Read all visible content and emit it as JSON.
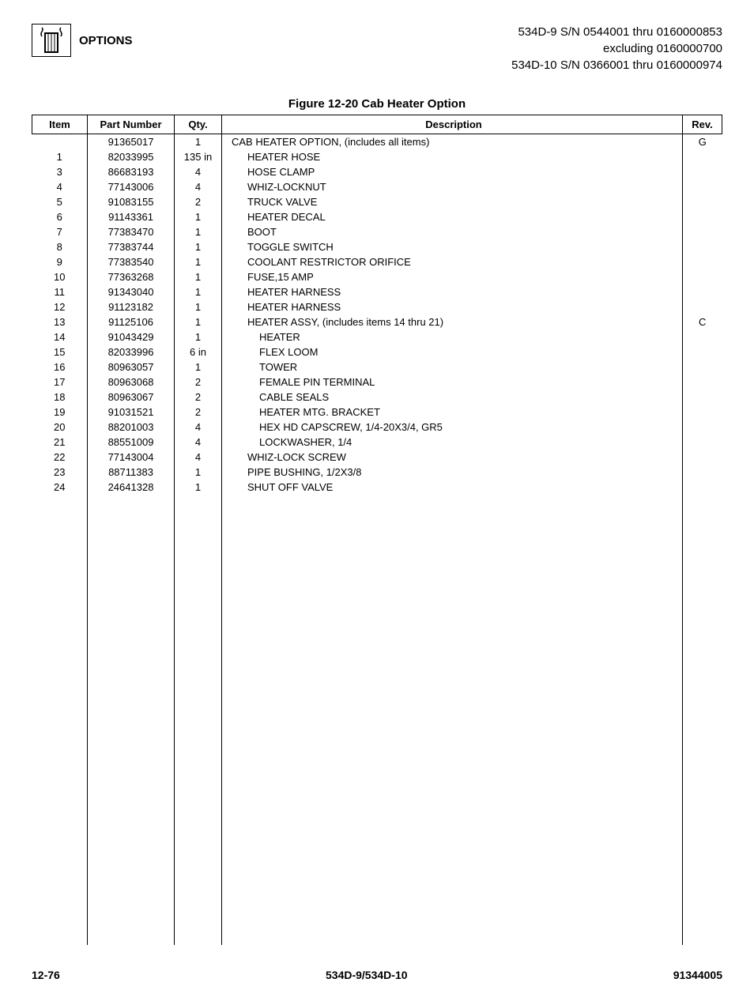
{
  "header": {
    "section_title": "OPTIONS",
    "model_info_line1": "534D-9 S/N 0544001 thru 0160000853",
    "model_info_line2": "excluding 0160000700",
    "model_info_line3": "534D-10 S/N 0366001 thru 0160000974"
  },
  "figure_title": "Figure 12-20 Cab Heater Option",
  "table": {
    "headers": {
      "item": "Item",
      "part_number": "Part Number",
      "qty": "Qty.",
      "description": "Description",
      "rev": "Rev."
    },
    "rows": [
      {
        "item": "",
        "part": "91365017",
        "qty": "1",
        "desc": "CAB HEATER OPTION, (includes all items)",
        "rev": "G",
        "indent": 0
      },
      {
        "item": "1",
        "part": "82033995",
        "qty": "135 in",
        "desc": "HEATER HOSE",
        "rev": "",
        "indent": 1
      },
      {
        "item": "3",
        "part": "86683193",
        "qty": "4",
        "desc": "HOSE CLAMP",
        "rev": "",
        "indent": 1
      },
      {
        "item": "4",
        "part": "77143006",
        "qty": "4",
        "desc": "WHIZ-LOCKNUT",
        "rev": "",
        "indent": 1
      },
      {
        "item": "5",
        "part": "91083155",
        "qty": "2",
        "desc": "TRUCK VALVE",
        "rev": "",
        "indent": 1
      },
      {
        "item": "6",
        "part": "91143361",
        "qty": "1",
        "desc": "HEATER DECAL",
        "rev": "",
        "indent": 1
      },
      {
        "item": "7",
        "part": "77383470",
        "qty": "1",
        "desc": "BOOT",
        "rev": "",
        "indent": 1
      },
      {
        "item": "8",
        "part": "77383744",
        "qty": "1",
        "desc": "TOGGLE SWITCH",
        "rev": "",
        "indent": 1
      },
      {
        "item": "9",
        "part": "77383540",
        "qty": "1",
        "desc": "COOLANT RESTRICTOR ORIFICE",
        "rev": "",
        "indent": 1
      },
      {
        "item": "10",
        "part": "77363268",
        "qty": "1",
        "desc": "FUSE,15 AMP",
        "rev": "",
        "indent": 1
      },
      {
        "item": "11",
        "part": "91343040",
        "qty": "1",
        "desc": "HEATER HARNESS",
        "rev": "",
        "indent": 1
      },
      {
        "item": "12",
        "part": "91123182",
        "qty": "1",
        "desc": "HEATER HARNESS",
        "rev": "",
        "indent": 1
      },
      {
        "item": "13",
        "part": "91125106",
        "qty": "1",
        "desc": "HEATER ASSY, (includes items 14 thru 21)",
        "rev": "C",
        "indent": 1
      },
      {
        "item": "14",
        "part": "91043429",
        "qty": "1",
        "desc": "HEATER",
        "rev": "",
        "indent": 2
      },
      {
        "item": "15",
        "part": "82033996",
        "qty": "6 in",
        "desc": "FLEX LOOM",
        "rev": "",
        "indent": 2
      },
      {
        "item": "16",
        "part": "80963057",
        "qty": "1",
        "desc": "TOWER",
        "rev": "",
        "indent": 2
      },
      {
        "item": "17",
        "part": "80963068",
        "qty": "2",
        "desc": "FEMALE PIN TERMINAL",
        "rev": "",
        "indent": 2
      },
      {
        "item": "18",
        "part": "80963067",
        "qty": "2",
        "desc": "CABLE SEALS",
        "rev": "",
        "indent": 2
      },
      {
        "item": "19",
        "part": "91031521",
        "qty": "2",
        "desc": "HEATER MTG. BRACKET",
        "rev": "",
        "indent": 2
      },
      {
        "item": "20",
        "part": "88201003",
        "qty": "4",
        "desc": "HEX HD CAPSCREW, 1/4-20X3/4, GR5",
        "rev": "",
        "indent": 2
      },
      {
        "item": "21",
        "part": "88551009",
        "qty": "4",
        "desc": "LOCKWASHER, 1/4",
        "rev": "",
        "indent": 2
      },
      {
        "item": "22",
        "part": "77143004",
        "qty": "4",
        "desc": "WHIZ-LOCK SCREW",
        "rev": "",
        "indent": 1
      },
      {
        "item": "23",
        "part": "88711383",
        "qty": "1",
        "desc": "PIPE BUSHING, 1/2X3/8",
        "rev": "",
        "indent": 1
      },
      {
        "item": "24",
        "part": "24641328",
        "qty": "1",
        "desc": "SHUT OFF VALVE",
        "rev": "",
        "indent": 1
      }
    ]
  },
  "footer": {
    "page": "12-76",
    "model": "534D-9/534D-10",
    "doc_number": "91344005"
  }
}
